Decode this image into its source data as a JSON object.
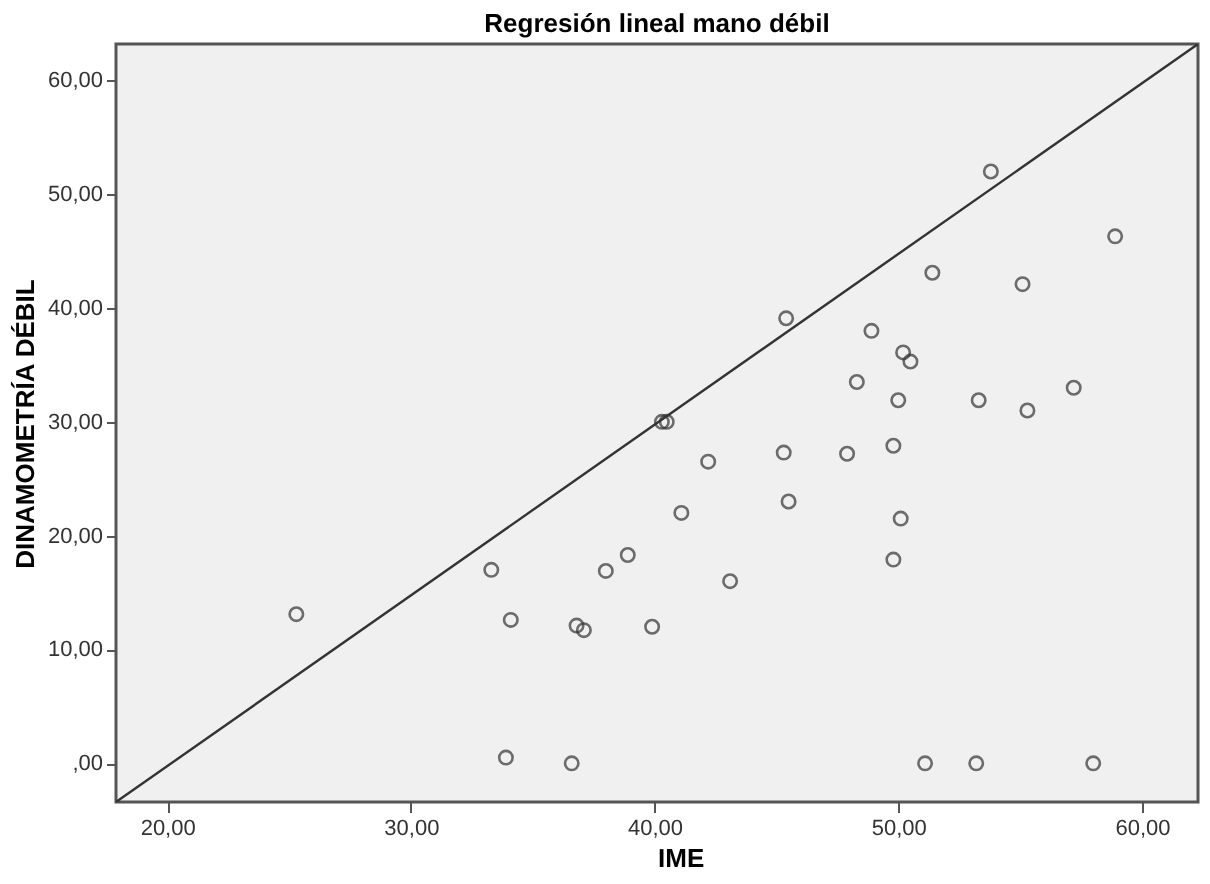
{
  "chart_data": {
    "type": "scatter",
    "title": "Regresión lineal mano débil",
    "xlabel": "IME",
    "ylabel": "DINAMOMETRÍA DÉBIL",
    "xlim": [
      17.9,
      62.3
    ],
    "ylim": [
      -3.4,
      63.2
    ],
    "xticks": [
      {
        "value": 20,
        "label": "20,00"
      },
      {
        "value": 30,
        "label": "30,00"
      },
      {
        "value": 40,
        "label": "40,00"
      },
      {
        "value": 50,
        "label": "50,00"
      },
      {
        "value": 60,
        "label": "60,00"
      }
    ],
    "yticks": [
      {
        "value": 0,
        "label": ",00"
      },
      {
        "value": 10,
        "label": "10,00"
      },
      {
        "value": 20,
        "label": "20,00"
      },
      {
        "value": 30,
        "label": "30,00"
      },
      {
        "value": 40,
        "label": "40,00"
      },
      {
        "value": 50,
        "label": "50,00"
      },
      {
        "value": 60,
        "label": "60,00"
      }
    ],
    "grid": false,
    "series": [
      {
        "marker": "circle",
        "color": "#333333",
        "x": [
          25.3,
          33.3,
          34.1,
          33.9,
          36.6,
          36.8,
          37.1,
          38.0,
          38.9,
          39.9,
          40.3,
          40.5,
          41.1,
          42.2,
          43.1,
          45.3,
          45.5,
          47.9,
          49.8,
          49.8,
          50.1,
          50.0,
          53.3,
          55.3,
          57.2,
          51.1,
          53.2,
          58.0,
          53.8,
          58.9,
          51.4,
          55.1,
          45.4,
          48.9,
          50.2,
          50.5,
          48.3
        ],
        "values": [
          13.1,
          17.0,
          12.6,
          0.5,
          0.0,
          12.1,
          11.7,
          16.9,
          18.3,
          12.0,
          30.0,
          30.0,
          22.0,
          26.5,
          16.0,
          27.3,
          23.0,
          27.2,
          27.9,
          17.9,
          21.5,
          31.9,
          31.9,
          31.0,
          33.0,
          0.0,
          0.0,
          0.0,
          52.0,
          46.3,
          43.1,
          42.1,
          39.1,
          38.0,
          36.1,
          35.3,
          33.5
        ]
      },
      {
        "type": "line",
        "marker": "none",
        "color": "#333333",
        "x": [
          17.9,
          62.3
        ],
        "values": [
          -3.4,
          63.2
        ]
      }
    ]
  }
}
